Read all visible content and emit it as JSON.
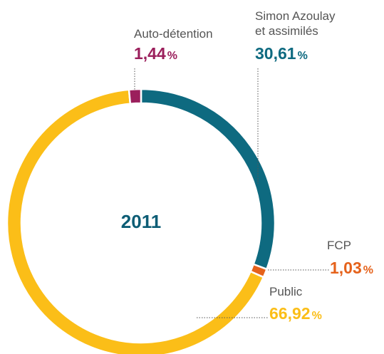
{
  "chart_data": {
    "type": "donut",
    "center_label": "2011",
    "categories": [
      "Simon Azoulay\net assimilés",
      "FCP",
      "Public",
      "Auto-détention"
    ],
    "values": [
      30.61,
      1.03,
      66.92,
      1.44
    ],
    "value_labels": [
      "30,61",
      "1,03",
      "66,92",
      "1,44"
    ],
    "unit": "%",
    "colors": [
      "#0e6a80",
      "#e5621b",
      "#fbbe18",
      "#9b1f5c"
    ]
  }
}
